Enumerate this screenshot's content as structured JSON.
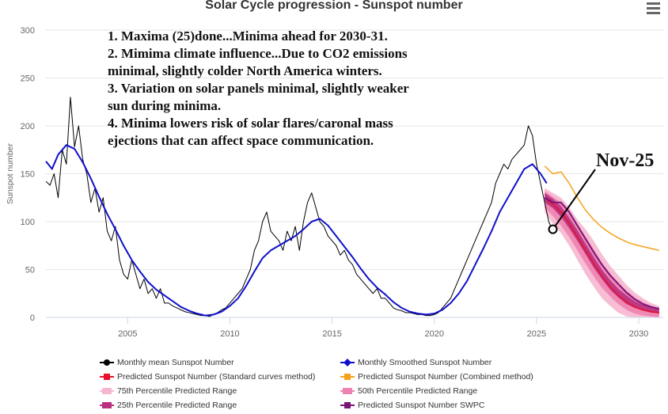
{
  "chart_data": {
    "type": "line",
    "title": "Solar Cycle progression - Sunspot number",
    "xlabel": "",
    "ylabel": "Sunspot number",
    "xlim": [
      2001.0,
      2031.2
    ],
    "ylim": [
      0,
      300
    ],
    "x_ticks": [
      2005,
      2010,
      2015,
      2020,
      2025,
      2030
    ],
    "y_ticks": [
      0,
      50,
      100,
      150,
      200,
      250,
      300
    ],
    "grid": "horizontal",
    "legend_position": "bottom",
    "series": [
      {
        "name": "Monthly mean Sunspot Number",
        "color": "#000000",
        "points": [
          [
            2001.0,
            142
          ],
          [
            2001.2,
            138
          ],
          [
            2001.4,
            150
          ],
          [
            2001.6,
            125
          ],
          [
            2001.8,
            175
          ],
          [
            2002.0,
            160
          ],
          [
            2002.2,
            230
          ],
          [
            2002.4,
            178
          ],
          [
            2002.6,
            200
          ],
          [
            2002.8,
            165
          ],
          [
            2003.0,
            150
          ],
          [
            2003.2,
            120
          ],
          [
            2003.4,
            135
          ],
          [
            2003.6,
            110
          ],
          [
            2003.8,
            125
          ],
          [
            2004.0,
            90
          ],
          [
            2004.2,
            80
          ],
          [
            2004.4,
            95
          ],
          [
            2004.6,
            60
          ],
          [
            2004.8,
            45
          ],
          [
            2005.0,
            40
          ],
          [
            2005.2,
            60
          ],
          [
            2005.4,
            45
          ],
          [
            2005.6,
            30
          ],
          [
            2005.8,
            40
          ],
          [
            2006.0,
            25
          ],
          [
            2006.2,
            30
          ],
          [
            2006.4,
            20
          ],
          [
            2006.6,
            30
          ],
          [
            2006.8,
            15
          ],
          [
            2007.0,
            15
          ],
          [
            2007.2,
            12
          ],
          [
            2007.4,
            10
          ],
          [
            2007.6,
            8
          ],
          [
            2007.8,
            6
          ],
          [
            2008.0,
            5
          ],
          [
            2008.2,
            4
          ],
          [
            2008.4,
            3
          ],
          [
            2008.6,
            2
          ],
          [
            2008.8,
            2
          ],
          [
            2009.0,
            1
          ],
          [
            2009.2,
            3
          ],
          [
            2009.4,
            5
          ],
          [
            2009.6,
            8
          ],
          [
            2009.8,
            10
          ],
          [
            2010.0,
            15
          ],
          [
            2010.2,
            20
          ],
          [
            2010.4,
            25
          ],
          [
            2010.6,
            30
          ],
          [
            2010.8,
            40
          ],
          [
            2011.0,
            50
          ],
          [
            2011.2,
            70
          ],
          [
            2011.4,
            80
          ],
          [
            2011.6,
            100
          ],
          [
            2011.8,
            110
          ],
          [
            2012.0,
            90
          ],
          [
            2012.2,
            85
          ],
          [
            2012.4,
            80
          ],
          [
            2012.6,
            70
          ],
          [
            2012.8,
            90
          ],
          [
            2013.0,
            80
          ],
          [
            2013.2,
            95
          ],
          [
            2013.4,
            70
          ],
          [
            2013.6,
            100
          ],
          [
            2013.8,
            120
          ],
          [
            2014.0,
            130
          ],
          [
            2014.2,
            115
          ],
          [
            2014.4,
            100
          ],
          [
            2014.6,
            95
          ],
          [
            2014.8,
            85
          ],
          [
            2015.0,
            80
          ],
          [
            2015.2,
            75
          ],
          [
            2015.4,
            65
          ],
          [
            2015.6,
            70
          ],
          [
            2015.8,
            60
          ],
          [
            2016.0,
            55
          ],
          [
            2016.2,
            45
          ],
          [
            2016.4,
            40
          ],
          [
            2016.6,
            35
          ],
          [
            2016.8,
            30
          ],
          [
            2017.0,
            25
          ],
          [
            2017.2,
            30
          ],
          [
            2017.4,
            20
          ],
          [
            2017.6,
            20
          ],
          [
            2017.8,
            15
          ],
          [
            2018.0,
            10
          ],
          [
            2018.2,
            8
          ],
          [
            2018.4,
            7
          ],
          [
            2018.6,
            5
          ],
          [
            2018.8,
            5
          ],
          [
            2019.0,
            4
          ],
          [
            2019.2,
            3
          ],
          [
            2019.4,
            3
          ],
          [
            2019.6,
            2
          ],
          [
            2019.8,
            2
          ],
          [
            2020.0,
            3
          ],
          [
            2020.2,
            5
          ],
          [
            2020.4,
            10
          ],
          [
            2020.6,
            15
          ],
          [
            2020.8,
            20
          ],
          [
            2021.0,
            30
          ],
          [
            2021.2,
            40
          ],
          [
            2021.4,
            50
          ],
          [
            2021.6,
            60
          ],
          [
            2021.8,
            70
          ],
          [
            2022.0,
            80
          ],
          [
            2022.2,
            90
          ],
          [
            2022.4,
            100
          ],
          [
            2022.6,
            110
          ],
          [
            2022.8,
            120
          ],
          [
            2023.0,
            140
          ],
          [
            2023.2,
            150
          ],
          [
            2023.4,
            160
          ],
          [
            2023.6,
            155
          ],
          [
            2023.8,
            165
          ],
          [
            2024.0,
            170
          ],
          [
            2024.2,
            175
          ],
          [
            2024.4,
            180
          ],
          [
            2024.6,
            200
          ],
          [
            2024.8,
            190
          ],
          [
            2025.0,
            160
          ],
          [
            2025.2,
            140
          ],
          [
            2025.4,
            120
          ],
          [
            2025.6,
            100
          ],
          [
            2025.8,
            90
          ]
        ]
      },
      {
        "name": "Monthly Smoothed Sunspot Number",
        "color": "#1010cc",
        "points": [
          [
            2001.0,
            163
          ],
          [
            2001.3,
            155
          ],
          [
            2001.6,
            170
          ],
          [
            2002.0,
            180
          ],
          [
            2002.4,
            176
          ],
          [
            2002.8,
            162
          ],
          [
            2003.2,
            145
          ],
          [
            2003.6,
            126
          ],
          [
            2004.0,
            108
          ],
          [
            2004.4,
            92
          ],
          [
            2004.8,
            75
          ],
          [
            2005.2,
            60
          ],
          [
            2005.6,
            48
          ],
          [
            2006.0,
            37
          ],
          [
            2006.4,
            29
          ],
          [
            2006.8,
            23
          ],
          [
            2007.2,
            17
          ],
          [
            2007.6,
            11
          ],
          [
            2008.0,
            7
          ],
          [
            2008.4,
            4
          ],
          [
            2008.8,
            2
          ],
          [
            2009.2,
            3
          ],
          [
            2009.6,
            6
          ],
          [
            2010.0,
            12
          ],
          [
            2010.4,
            20
          ],
          [
            2010.8,
            33
          ],
          [
            2011.2,
            48
          ],
          [
            2011.6,
            62
          ],
          [
            2012.0,
            70
          ],
          [
            2012.4,
            75
          ],
          [
            2012.8,
            80
          ],
          [
            2013.2,
            85
          ],
          [
            2013.6,
            92
          ],
          [
            2014.0,
            100
          ],
          [
            2014.4,
            103
          ],
          [
            2014.8,
            96
          ],
          [
            2015.2,
            85
          ],
          [
            2015.6,
            74
          ],
          [
            2016.0,
            63
          ],
          [
            2016.4,
            51
          ],
          [
            2016.8,
            40
          ],
          [
            2017.2,
            31
          ],
          [
            2017.6,
            24
          ],
          [
            2018.0,
            16
          ],
          [
            2018.4,
            10
          ],
          [
            2018.8,
            6
          ],
          [
            2019.2,
            4
          ],
          [
            2019.6,
            3
          ],
          [
            2020.0,
            4
          ],
          [
            2020.4,
            8
          ],
          [
            2020.8,
            15
          ],
          [
            2021.2,
            25
          ],
          [
            2021.6,
            38
          ],
          [
            2022.0,
            55
          ],
          [
            2022.4,
            72
          ],
          [
            2022.8,
            90
          ],
          [
            2023.2,
            110
          ],
          [
            2023.6,
            125
          ],
          [
            2024.0,
            140
          ],
          [
            2024.4,
            155
          ],
          [
            2024.8,
            160
          ],
          [
            2025.2,
            150
          ],
          [
            2025.5,
            140
          ]
        ]
      },
      {
        "name": "Predicted Sunspot Number (Standard curves method)",
        "color": "#e8102a",
        "points": [
          [
            2025.4,
            125
          ],
          [
            2025.8,
            118
          ],
          [
            2026.2,
            110
          ],
          [
            2026.6,
            98
          ],
          [
            2027.0,
            84
          ],
          [
            2027.4,
            70
          ],
          [
            2027.8,
            56
          ],
          [
            2028.2,
            43
          ],
          [
            2028.6,
            32
          ],
          [
            2029.0,
            23
          ],
          [
            2029.4,
            16
          ],
          [
            2029.8,
            11
          ],
          [
            2030.2,
            8
          ],
          [
            2030.6,
            6
          ],
          [
            2031.0,
            5
          ]
        ]
      },
      {
        "name": "Predicted Sunspot Number (Combined method)",
        "color": "#f5a11c",
        "points": [
          [
            2025.4,
            158
          ],
          [
            2025.8,
            150
          ],
          [
            2026.2,
            152
          ],
          [
            2026.6,
            140
          ],
          [
            2027.0,
            125
          ],
          [
            2027.4,
            112
          ],
          [
            2027.8,
            102
          ],
          [
            2028.2,
            94
          ],
          [
            2028.6,
            88
          ],
          [
            2029.0,
            83
          ],
          [
            2029.4,
            79
          ],
          [
            2029.8,
            76
          ],
          [
            2030.2,
            74
          ],
          [
            2030.6,
            72
          ],
          [
            2031.0,
            70
          ]
        ]
      },
      {
        "name": "75th Percentile Predicted Range",
        "color": "#f6b6cf",
        "band": [
          [
            2025.4,
            110,
            135
          ],
          [
            2025.8,
            98,
            130
          ],
          [
            2026.2,
            88,
            125
          ],
          [
            2026.6,
            75,
            115
          ],
          [
            2027.0,
            60,
            102
          ],
          [
            2027.4,
            45,
            92
          ],
          [
            2027.8,
            32,
            80
          ],
          [
            2028.2,
            20,
            66
          ],
          [
            2028.6,
            12,
            54
          ],
          [
            2029.0,
            5,
            44
          ],
          [
            2029.4,
            1,
            34
          ],
          [
            2029.8,
            0,
            26
          ],
          [
            2030.2,
            0,
            20
          ],
          [
            2030.6,
            0,
            15
          ],
          [
            2031.0,
            0,
            12
          ]
        ]
      },
      {
        "name": "50th Percentile Predicted Range",
        "color": "#ee82b0",
        "band": [
          [
            2025.4,
            115,
            132
          ],
          [
            2025.8,
            106,
            126
          ],
          [
            2026.2,
            96,
            120
          ],
          [
            2026.6,
            84,
            110
          ],
          [
            2027.0,
            70,
            97
          ],
          [
            2027.4,
            56,
            84
          ],
          [
            2027.8,
            43,
            71
          ],
          [
            2028.2,
            31,
            57
          ],
          [
            2028.6,
            22,
            46
          ],
          [
            2029.0,
            14,
            36
          ],
          [
            2029.4,
            8,
            28
          ],
          [
            2029.8,
            4,
            21
          ],
          [
            2030.2,
            2,
            16
          ],
          [
            2030.6,
            1,
            12
          ],
          [
            2031.0,
            0,
            10
          ]
        ]
      },
      {
        "name": "25th Percentile Predicted Range",
        "color": "#b8307e",
        "band": [
          [
            2025.4,
            120,
            130
          ],
          [
            2025.8,
            114,
            124
          ],
          [
            2026.2,
            105,
            116
          ],
          [
            2026.6,
            93,
            104
          ],
          [
            2027.0,
            80,
            91
          ],
          [
            2027.4,
            66,
            77
          ],
          [
            2027.8,
            52,
            63
          ],
          [
            2028.2,
            40,
            50
          ],
          [
            2028.6,
            29,
            39
          ],
          [
            2029.0,
            21,
            30
          ],
          [
            2029.4,
            14,
            23
          ],
          [
            2029.8,
            10,
            17
          ],
          [
            2030.2,
            7,
            13
          ],
          [
            2030.6,
            5,
            11
          ],
          [
            2031.0,
            4,
            9
          ]
        ]
      },
      {
        "name": "Predicted Sunspot Number SWPC",
        "color": "#7a1577",
        "points": [
          [
            2025.4,
            125
          ],
          [
            2025.8,
            120
          ],
          [
            2026.2,
            120
          ],
          [
            2026.6,
            110
          ],
          [
            2027.0,
            96
          ],
          [
            2027.4,
            82
          ],
          [
            2027.8,
            68
          ],
          [
            2028.2,
            55
          ],
          [
            2028.6,
            44
          ],
          [
            2029.0,
            35
          ],
          [
            2029.4,
            26
          ],
          [
            2029.8,
            19
          ],
          [
            2030.2,
            14
          ],
          [
            2030.6,
            11
          ],
          [
            2031.0,
            9
          ]
        ]
      }
    ],
    "annotations": [
      "1. Maxima (25)done...Minima ahead for 2030-31.",
      "2. Mimima climate influence...Due to CO2 emissions",
      "minimal, slightly colder North America winters.",
      "3. Variation on solar panels minimal, slightly weaker",
      "sun during minima.",
      "4. Minima lowers risk of solar flares/caronal mass",
      "ejections that can affect space communication."
    ],
    "callout": {
      "text": "Nov-25",
      "x": 2025.8,
      "y": 92
    }
  }
}
